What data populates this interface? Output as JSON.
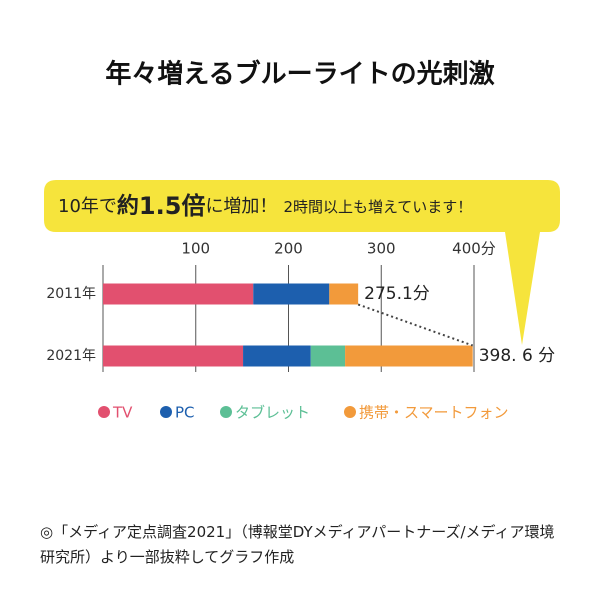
{
  "chart_data": {
    "type": "stacked-bar",
    "title": "年々増えるブルーライトの光刺激",
    "callout": [
      "10年で",
      "約",
      "1.5倍",
      "に増加！",
      "2時間以上も増えています！"
    ],
    "categories": [
      "2011年",
      "2021年"
    ],
    "series": [
      {
        "name": "TV",
        "color": "#e2506f",
        "values": [
          162,
          151
        ]
      },
      {
        "name": "PC",
        "color": "#1d5fae",
        "values": [
          82,
          73
        ]
      },
      {
        "name": "タブレット",
        "color": "#5cbf95",
        "values": [
          0,
          37
        ]
      },
      {
        "name": "携帯・スマートフォン",
        "color": "#f29a3b",
        "values": [
          31.1,
          137.6
        ]
      }
    ],
    "totals": [
      275.1,
      398.6
    ],
    "total_labels": [
      "275.1分",
      "398. 6 分"
    ],
    "xlim": [
      0,
      400
    ],
    "xticks": [
      100,
      200,
      300,
      {
        "value": 400,
        "label": "400分"
      }
    ],
    "grid": true,
    "source": "◎「メディア定点調査2021」（博報堂DYメディアパートナーズ/メディア環境研究所）より一部抜粋してグラフ作成"
  }
}
